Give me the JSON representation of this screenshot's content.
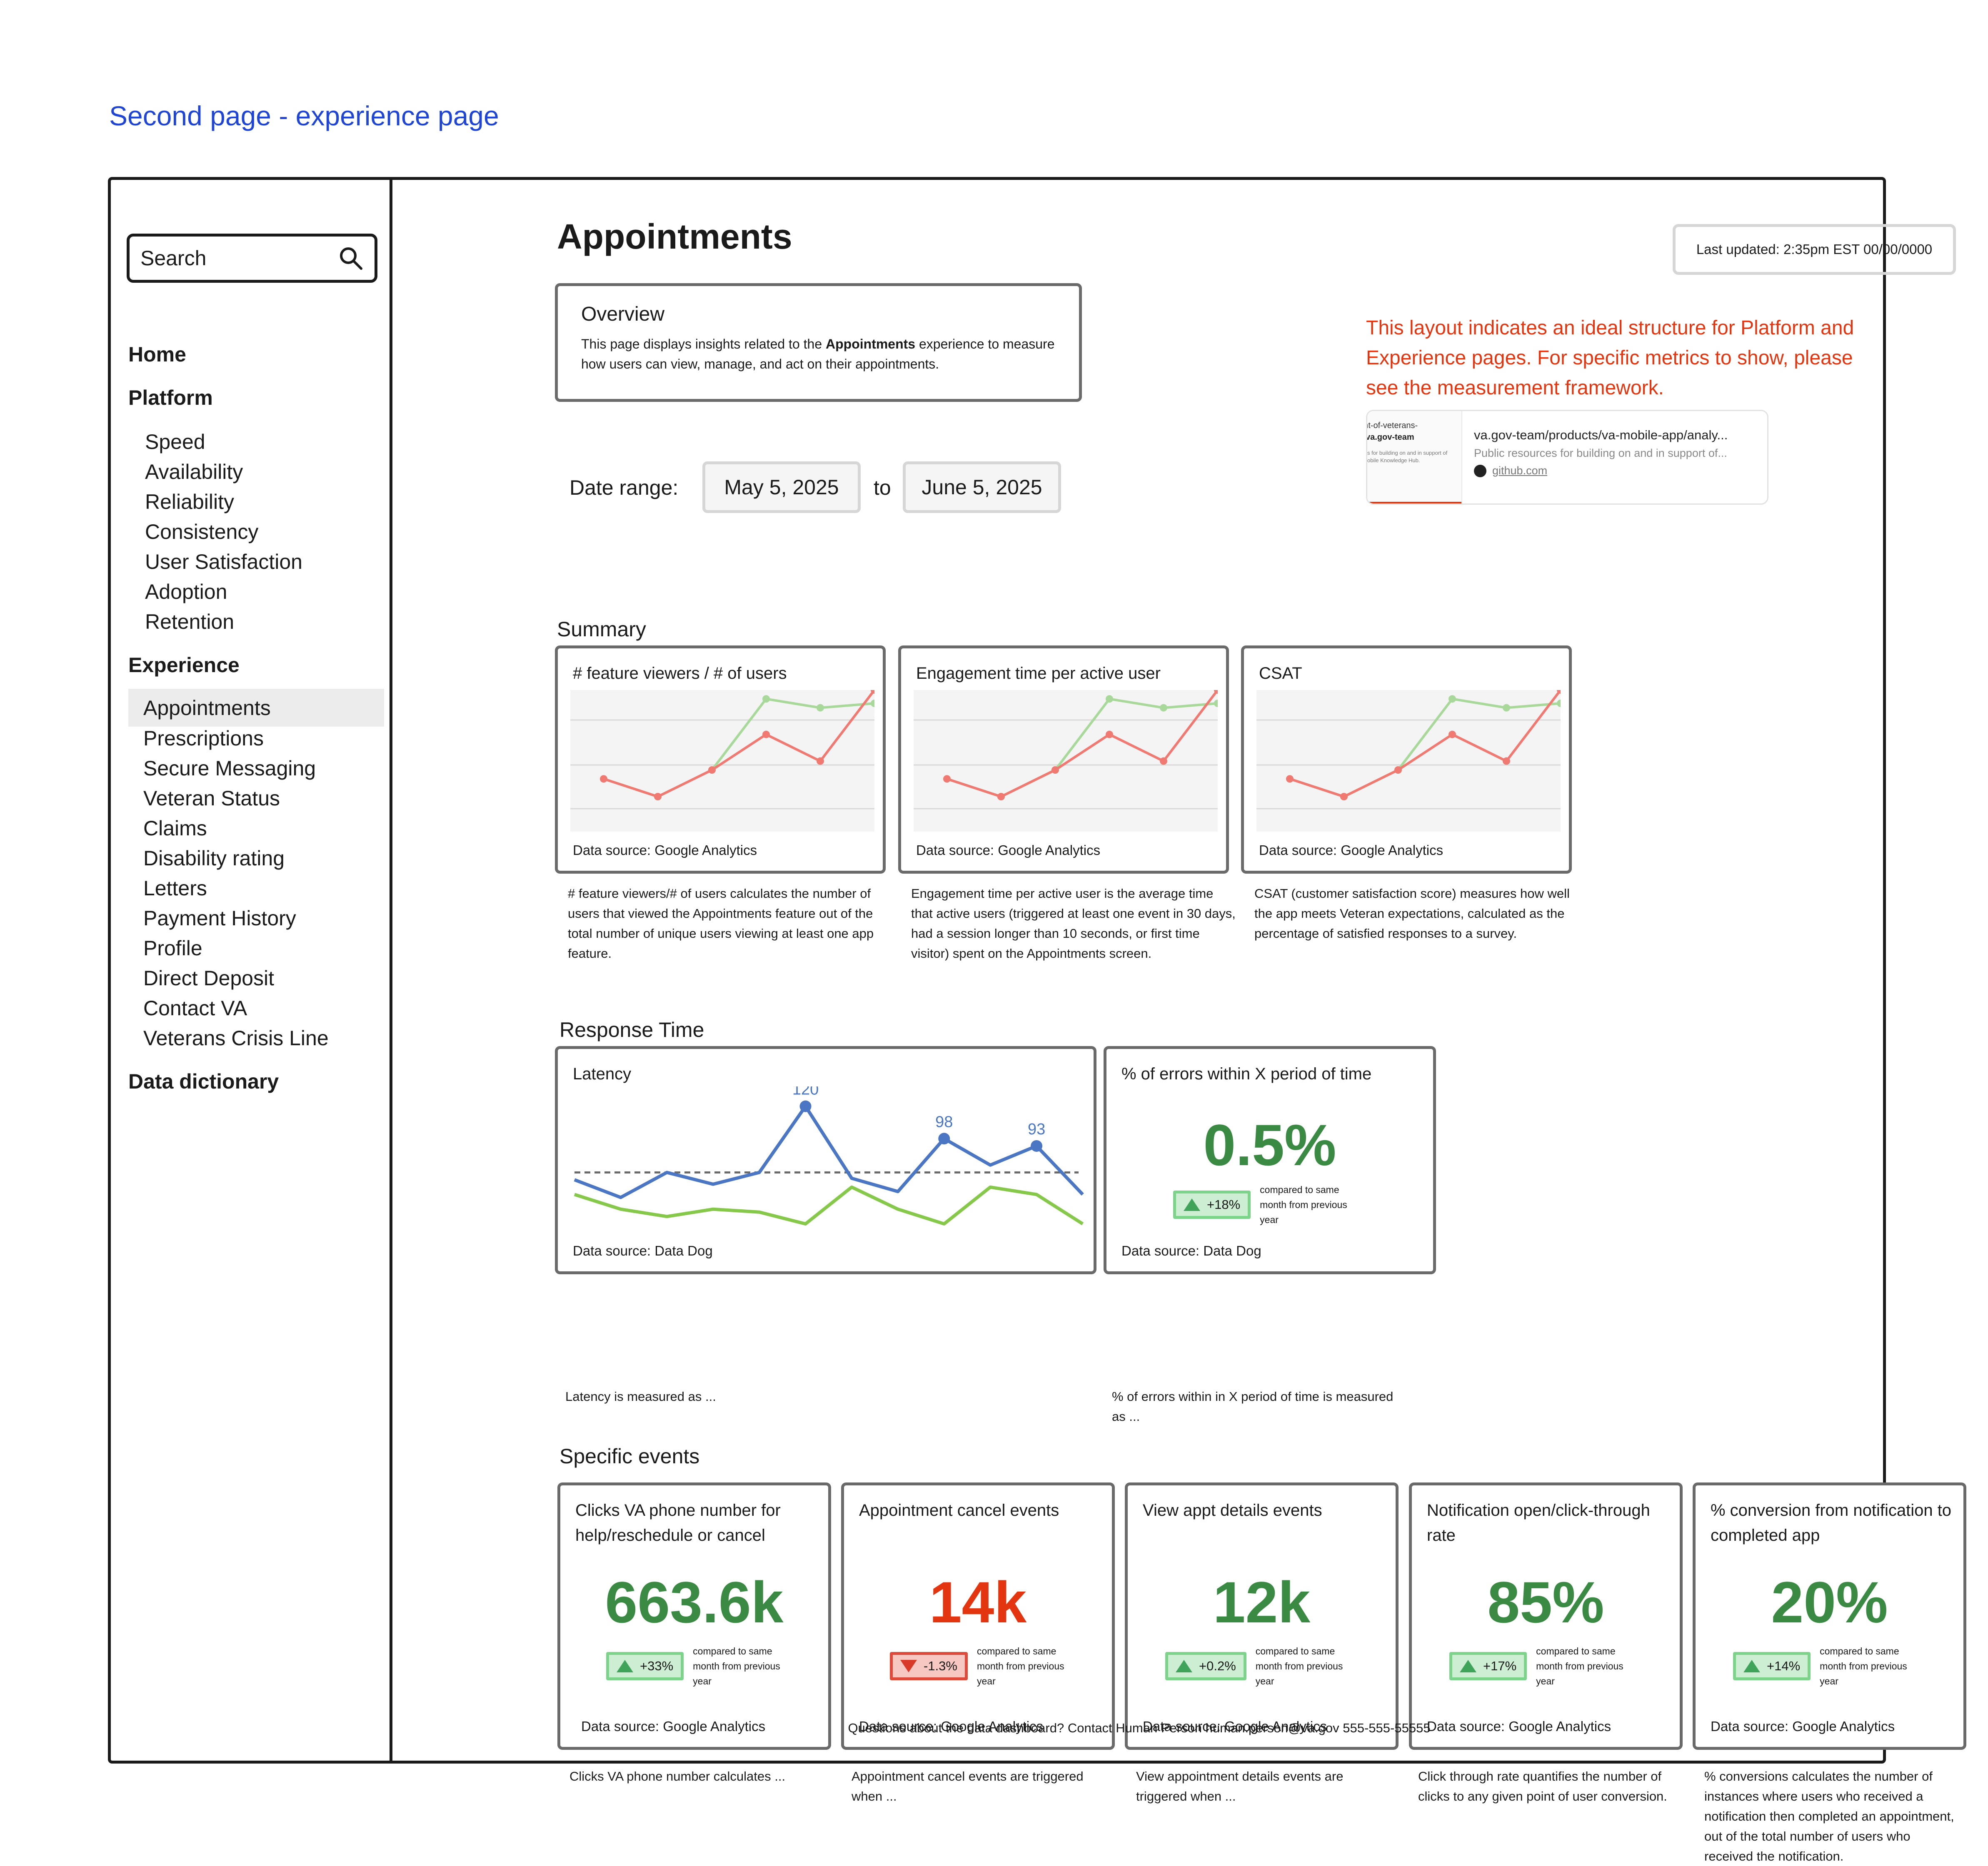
{
  "page_heading": "Second page - experience page",
  "sidebar": {
    "search_placeholder": "Search",
    "home": "Home",
    "platform": "Platform",
    "platform_items": [
      "Speed",
      "Availability",
      "Reliability",
      "Consistency",
      "User Satisfaction",
      "Adoption",
      "Retention"
    ],
    "experience": "Experience",
    "experience_items": [
      "Appointments",
      "Prescriptions",
      "Secure Messaging",
      "Veteran Status",
      "Claims",
      "Disability rating",
      "Letters",
      "Payment History",
      "Profile",
      "Direct Deposit",
      "Contact VA",
      "Veterans Crisis Line"
    ],
    "data_dictionary": "Data dictionary",
    "active_item": "Appointments"
  },
  "header": {
    "title": "Appointments",
    "last_updated": "Last updated: 2:35pm EST 00/00/0000"
  },
  "overview": {
    "title": "Overview",
    "text_before": "This page displays insights related to the ",
    "text_bold": "Appointments",
    "text_after": " experience to measure how users can view, manage, and act on their appointments."
  },
  "note": "This layout indicates an ideal structure for Platform and Experience pages. For specific metrics to show, please see the measurement framework.",
  "link_preview": {
    "thumb_line1": "ent-of-veterans-",
    "thumb_line2": "va.gov-team",
    "thumb_line3": "s for building on and in support of obile Knowledge Hub.",
    "title": "va.gov-team/products/va-mobile-app/analy...",
    "description": "Public resources for building on and in support of...",
    "domain": "github.com"
  },
  "date_range": {
    "label": "Date range:",
    "start": "May 5, 2025",
    "separator": "to",
    "end": "June 5, 2025"
  },
  "summary": {
    "label": "Summary",
    "cards": [
      {
        "title": "# feature viewers / # of users",
        "source": "Data source: Google Analytics",
        "description": "# feature viewers/# of users calculates the number of users that viewed the Appointments feature out of the total number of unique users viewing at least one app feature."
      },
      {
        "title": "Engagement time per active user",
        "source": "Data source: Google Analytics",
        "description": "Engagement time per active user is the average time that active users (triggered at least one event in 30 days, had a session longer than 10 seconds, or first time visitor) spent on the Appointments screen."
      },
      {
        "title": "CSAT",
        "source": "Data source: Google Analytics",
        "description": "CSAT (customer satisfaction score) measures how well the app meets Veteran expectations, calculated as the percentage of satisfied responses to a survey."
      }
    ]
  },
  "response_time": {
    "label": "Response Time",
    "latency": {
      "title": "Latency",
      "source": "Data source: Data Dog",
      "description": "Latency is measured as ..."
    },
    "errors": {
      "title": "% of errors within X period of time",
      "value": "0.5%",
      "delta": "+18%",
      "delta_note": "compared to same month from previous year",
      "source": "Data source: Data Dog",
      "description": "% of errors within in X period of time is measured as ..."
    }
  },
  "specific_events": {
    "label": "Specific events",
    "cards": [
      {
        "title": "Clicks VA phone number for help/reschedule or cancel",
        "value": "663.6k",
        "delta": "+33%",
        "trend": "up",
        "delta_note": "compared to same month from previous year",
        "source": "Data source: Google Analytics",
        "description": "Clicks VA phone number calculates ..."
      },
      {
        "title": "Appointment cancel events",
        "value": "14k",
        "delta": "-1.3%",
        "trend": "down",
        "delta_note": "compared to same month from previous year",
        "source": "Data source: Google Analytics",
        "description": "Appointment cancel events are triggered when ..."
      },
      {
        "title": "View appt details events",
        "value": "12k",
        "delta": "+0.2%",
        "trend": "up",
        "delta_note": "compared to same month from previous year",
        "source": "Data source: Google Analytics",
        "description": "View appointment details events are triggered when ..."
      },
      {
        "title": "Notification open/click-through rate",
        "value": "85%",
        "delta": "+17%",
        "trend": "up",
        "delta_note": "compared to same month from previous year",
        "source": "Data source: Google Analytics",
        "description": "Click through rate quantifies the number of clicks to any given point of user conversion."
      },
      {
        "title": "% conversion from notification to completed app",
        "value": "20%",
        "delta": "+14%",
        "trend": "up",
        "delta_note": "compared to same month from previous year",
        "source": "Data source: Google Analytics",
        "description": "% conversions calculates the number of instances where users who received a notification then completed an appointment, out of the total number of users who received the notification."
      }
    ]
  },
  "footer": "Questions about the data dashboard? Contact Human Person human.person@va.gov 555-555-55555",
  "chart_data": [
    {
      "type": "line",
      "series": [
        {
          "values": [
            10,
            6,
            12,
            28,
            26,
            27
          ]
        },
        {
          "values": [
            10,
            6,
            12,
            20,
            14,
            30
          ]
        }
      ],
      "colors": [
        "#a8d89a",
        "#f07a72"
      ],
      "grid": true
    },
    {
      "type": "line",
      "series": [
        {
          "values": [
            10,
            6,
            12,
            28,
            26,
            27
          ]
        },
        {
          "values": [
            10,
            6,
            12,
            20,
            14,
            30
          ]
        }
      ],
      "colors": [
        "#a8d89a",
        "#f07a72"
      ],
      "grid": true
    },
    {
      "type": "line",
      "series": [
        {
          "values": [
            10,
            6,
            12,
            28,
            26,
            27
          ]
        },
        {
          "values": [
            10,
            6,
            12,
            20,
            14,
            30
          ]
        }
      ],
      "colors": [
        "#a8d89a",
        "#f07a72"
      ],
      "grid": true
    },
    {
      "type": "line",
      "series": [
        {
          "values": [
            70,
            58,
            75,
            67,
            75,
            120,
            71,
            62,
            98,
            80,
            93,
            60
          ]
        },
        {
          "values": [
            60,
            50,
            45,
            50,
            48,
            40,
            65,
            50,
            40,
            65,
            60,
            40
          ]
        }
      ],
      "point_labels": [
        {
          "index": 5,
          "text": "120"
        },
        {
          "index": 8,
          "text": "98"
        },
        {
          "index": 10,
          "text": "93"
        }
      ],
      "reference_line": 75,
      "colors": [
        "#4a76c4",
        "#86c94a",
        "#6a6a6a"
      ]
    }
  ]
}
